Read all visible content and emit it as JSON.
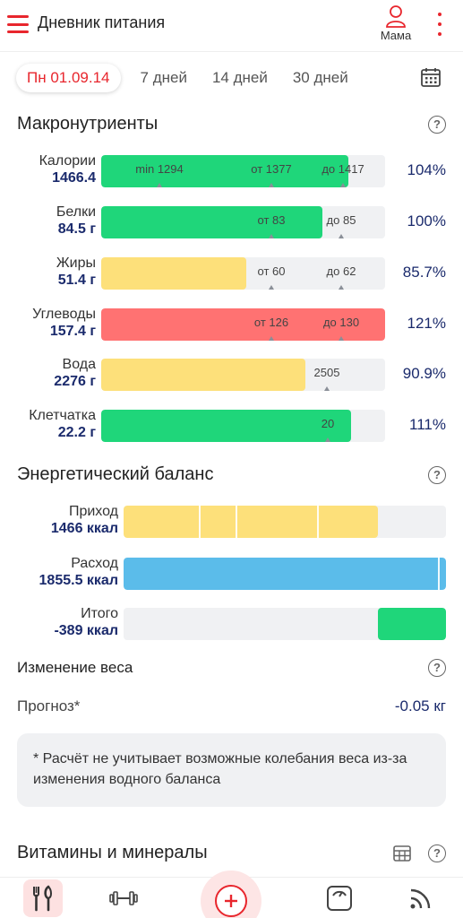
{
  "header": {
    "title": "Дневник питания",
    "profile_name": "Мама"
  },
  "tabs": [
    {
      "label": "Пн 01.09.14",
      "active": true
    },
    {
      "label": "7 дней"
    },
    {
      "label": "14 дней"
    },
    {
      "label": "30 дней"
    }
  ],
  "macros": {
    "title": "Макронутриенты",
    "rows": [
      {
        "label": "Калории",
        "value": "1466.4",
        "percent": "104%",
        "color": "#1fd67a",
        "fill": 0.87,
        "marks": [
          {
            "text": "min 1294"
          },
          {
            "text": "от 1377"
          },
          {
            "text": "до 1417"
          }
        ]
      },
      {
        "label": "Белки",
        "value": "84.5 г",
        "percent": "100%",
        "color": "#1fd67a",
        "fill": 0.78,
        "marks": [
          {
            "text": "от 83"
          },
          {
            "text": "до 85"
          }
        ]
      },
      {
        "label": "Жиры",
        "value": "51.4 г",
        "percent": "85.7%",
        "color": "#fde07a",
        "fill": 0.51,
        "marks": [
          {
            "text": "от 60"
          },
          {
            "text": "до 62"
          }
        ]
      },
      {
        "label": "Углеводы",
        "value": "157.4 г",
        "percent": "121%",
        "color": "#ff7272",
        "fill": 1.0,
        "marks": [
          {
            "text": "от 126"
          },
          {
            "text": "до 130"
          }
        ]
      },
      {
        "label": "Вода",
        "value": "2276 г",
        "percent": "90.9%",
        "color": "#fde07a",
        "fill": 0.72,
        "marks": [
          {
            "text": "2505"
          }
        ]
      },
      {
        "label": "Клетчатка",
        "value": "22.2 г",
        "percent": "111%",
        "color": "#1fd67a",
        "fill": 0.88,
        "marks": [
          {
            "text": "20"
          }
        ]
      }
    ]
  },
  "energy": {
    "title": "Энергетический баланс",
    "rows": [
      {
        "label": "Приход",
        "value": "1466 ккал",
        "color": "#fde07a",
        "fill": 0.79
      },
      {
        "label": "Расход",
        "value": "1855.5 ккал",
        "color": "#5bbcea",
        "fill": 1.0
      },
      {
        "label": "Итого",
        "value": "-389 ккал",
        "color": "#1fd67a",
        "fill": 0.21
      }
    ]
  },
  "weight": {
    "title": "Изменение веса",
    "forecast_label": "Прогноз*",
    "forecast_value": "-0.05 кг",
    "note": "* Расчёт не учитывает возможные колебания веса из-за изменения водного баланса"
  },
  "vitamins": {
    "title": "Витамины и минералы"
  },
  "help_glyph": "?",
  "accent": "#e8262d",
  "icons": [
    "menu-icon",
    "user-icon",
    "kebab-icon",
    "calendar-icon",
    "help-icon",
    "table-icon",
    "fork-knife-icon",
    "dumbbell-icon",
    "plus-icon",
    "scale-icon",
    "feed-icon"
  ]
}
